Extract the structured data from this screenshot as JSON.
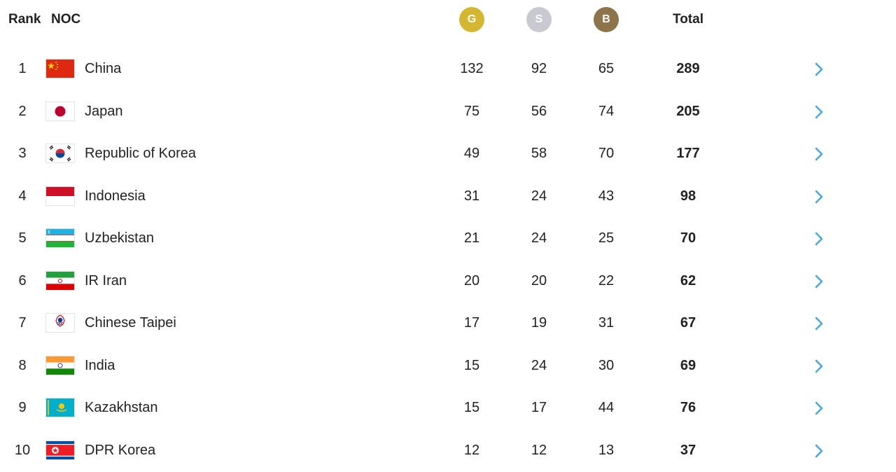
{
  "header": {
    "rank_label": "Rank",
    "noc_label": "NOC",
    "gold_label": "G",
    "silver_label": "S",
    "bronze_label": "B",
    "total_label": "Total"
  },
  "colors": {
    "gold": "#d4b731",
    "silver": "#c9c9d2",
    "bronze": "#8d744a",
    "chevron": "#4ba7e0"
  },
  "rows": [
    {
      "rank": "1",
      "flag": "china-flag-icon",
      "country": "China",
      "gold": "132",
      "silver": "92",
      "bronze": "65",
      "total": "289"
    },
    {
      "rank": "2",
      "flag": "japan-flag-icon",
      "country": "Japan",
      "gold": "75",
      "silver": "56",
      "bronze": "74",
      "total": "205"
    },
    {
      "rank": "3",
      "flag": "korea-flag-icon",
      "country": "Republic of Korea",
      "gold": "49",
      "silver": "58",
      "bronze": "70",
      "total": "177"
    },
    {
      "rank": "4",
      "flag": "indonesia-flag-icon",
      "country": "Indonesia",
      "gold": "31",
      "silver": "24",
      "bronze": "43",
      "total": "98"
    },
    {
      "rank": "5",
      "flag": "uzbekistan-flag-icon",
      "country": "Uzbekistan",
      "gold": "21",
      "silver": "24",
      "bronze": "25",
      "total": "70"
    },
    {
      "rank": "6",
      "flag": "iran-flag-icon",
      "country": "IR Iran",
      "gold": "20",
      "silver": "20",
      "bronze": "22",
      "total": "62"
    },
    {
      "rank": "7",
      "flag": "chinese-taipei-flag-icon",
      "country": "Chinese Taipei",
      "gold": "17",
      "silver": "19",
      "bronze": "31",
      "total": "67"
    },
    {
      "rank": "8",
      "flag": "india-flag-icon",
      "country": "India",
      "gold": "15",
      "silver": "24",
      "bronze": "30",
      "total": "69"
    },
    {
      "rank": "9",
      "flag": "kazakhstan-flag-icon",
      "country": "Kazakhstan",
      "gold": "15",
      "silver": "17",
      "bronze": "44",
      "total": "76"
    },
    {
      "rank": "10",
      "flag": "dpr-korea-flag-icon",
      "country": "DPR Korea",
      "gold": "12",
      "silver": "12",
      "bronze": "13",
      "total": "37"
    }
  ]
}
